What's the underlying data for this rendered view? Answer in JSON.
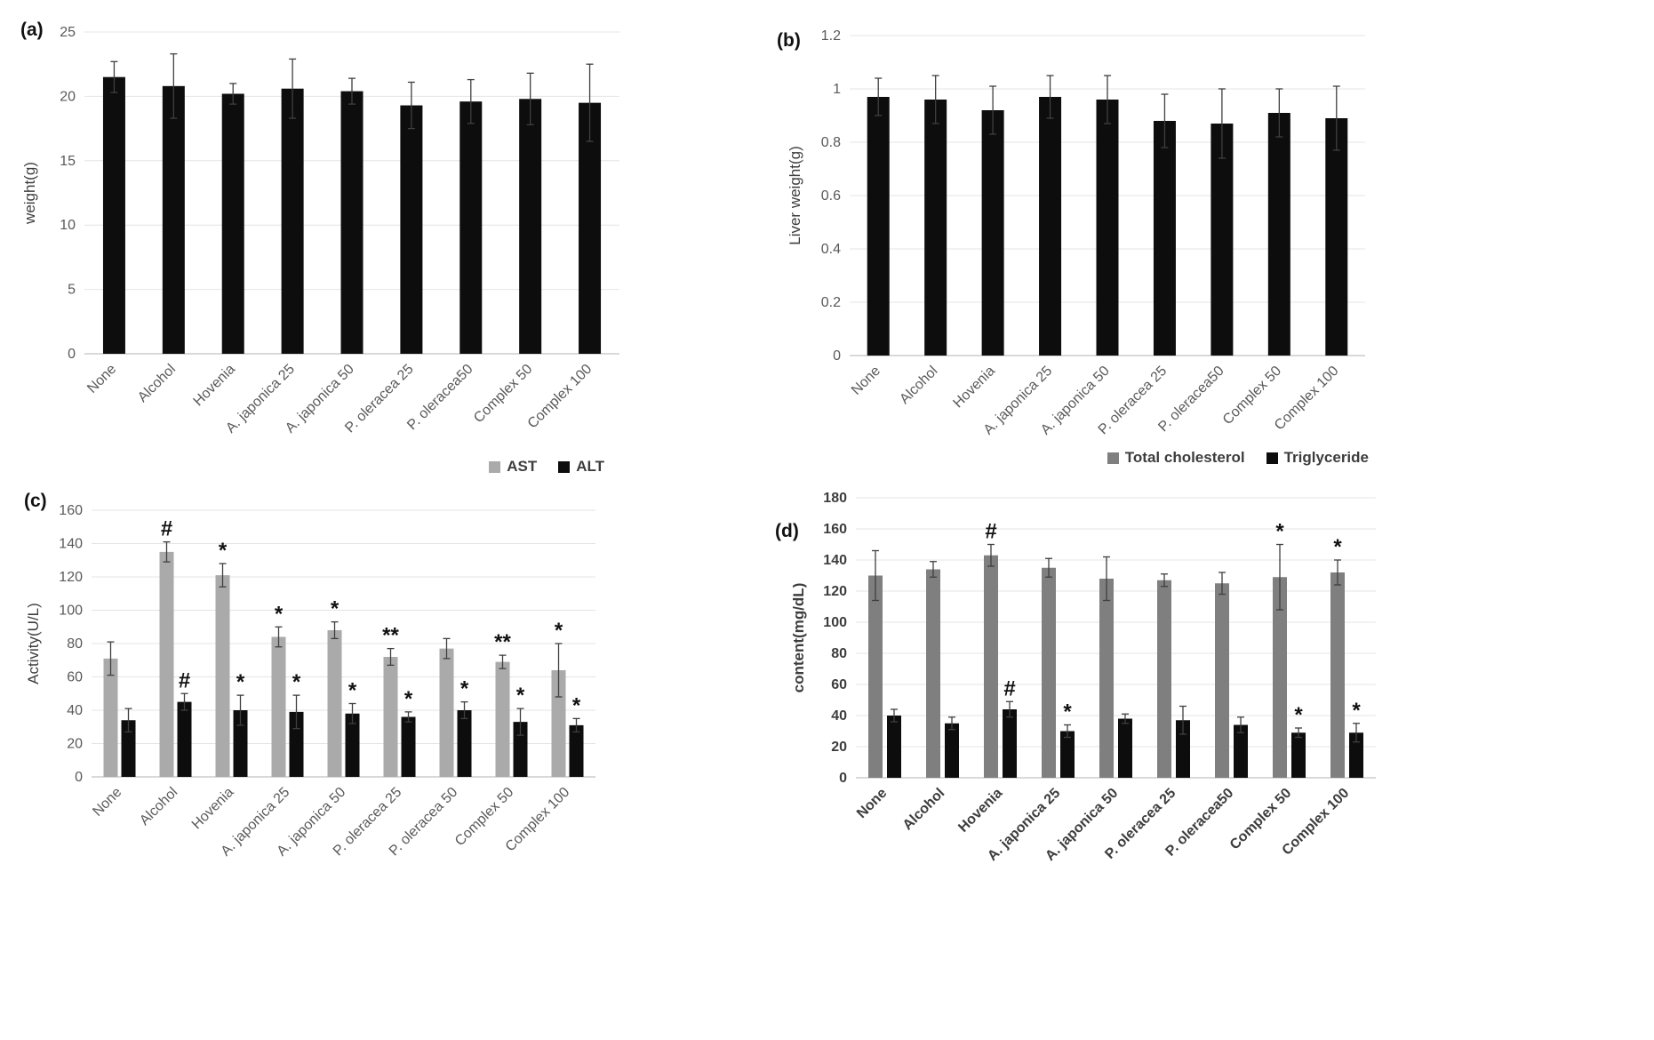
{
  "chart_data": [
    {
      "id": "a",
      "panel_label": "(a)",
      "type": "bar",
      "title": "",
      "xlabel": "",
      "ylabel": "weight(g)",
      "ylim": [
        0,
        25
      ],
      "ytick_values": [
        0,
        5,
        10,
        15,
        20,
        25
      ],
      "ytick_labels": [
        "0",
        "5",
        "10",
        "15",
        "20",
        "25"
      ],
      "grid": true,
      "legend": null,
      "categories": [
        "None",
        "Alcohol",
        "Hovenia",
        "A. japonica 25",
        "A. japonica 50",
        "P. oleracea 25",
        "P. oleracea50",
        "Complex 50",
        "Complex 100"
      ],
      "series": [
        {
          "name": "",
          "color": "#0d0d0d",
          "values": [
            21.5,
            20.8,
            20.2,
            20.6,
            20.4,
            19.3,
            19.6,
            19.8,
            19.5
          ],
          "errors": [
            1.2,
            2.5,
            0.8,
            2.3,
            1.0,
            1.8,
            1.7,
            2.0,
            3.0
          ],
          "annotations": [
            "",
            "",
            "",
            "",
            "",
            "",
            "",
            "",
            ""
          ]
        }
      ]
    },
    {
      "id": "b",
      "panel_label": "(b)",
      "type": "bar",
      "title": "",
      "xlabel": "",
      "ylabel": "Liver weight(g)",
      "ylim": [
        0,
        1.2
      ],
      "ytick_values": [
        0,
        0.2,
        0.4,
        0.6,
        0.8,
        1,
        1.2
      ],
      "ytick_labels": [
        "0",
        "0.2",
        "0.4",
        "0.6",
        "0.8",
        "1",
        "1.2"
      ],
      "grid": true,
      "legend": null,
      "categories": [
        "None",
        "Alcohol",
        "Hovenia",
        "A. japonica 25",
        "A. japonica 50",
        "P. oleracea 25",
        "P. oleracea50",
        "Complex 50",
        "Complex 100"
      ],
      "series": [
        {
          "name": "",
          "color": "#0d0d0d",
          "values": [
            0.97,
            0.96,
            0.92,
            0.97,
            0.96,
            0.88,
            0.87,
            0.91,
            0.89
          ],
          "errors": [
            0.07,
            0.09,
            0.09,
            0.08,
            0.09,
            0.1,
            0.13,
            0.09,
            0.12
          ],
          "annotations": [
            "",
            "",
            "",
            "",
            "",
            "",
            "",
            "",
            ""
          ]
        }
      ]
    },
    {
      "id": "c",
      "panel_label": "(c)",
      "type": "bar",
      "title": "",
      "xlabel": "",
      "ylabel": "Activity(U/L)",
      "ylim": [
        0,
        160
      ],
      "ytick_values": [
        0,
        20,
        40,
        60,
        80,
        100,
        120,
        140,
        160
      ],
      "ytick_labels": [
        "0",
        "20",
        "40",
        "60",
        "80",
        "100",
        "120",
        "140",
        "160"
      ],
      "grid": true,
      "legend": {
        "position": "top-right"
      },
      "categories": [
        "None",
        "Alcohol",
        "Hovenia",
        "A. japonica 25",
        "A. japonica 50",
        "P. oleracea 25",
        "P. oleracea 50",
        "Complex 50",
        "Complex 100"
      ],
      "series": [
        {
          "name": "AST",
          "color": "#aaaaaa",
          "values": [
            71,
            135,
            121,
            84,
            88,
            72,
            77,
            69,
            64
          ],
          "errors": [
            10,
            6,
            7,
            6,
            5,
            5,
            6,
            4,
            16
          ],
          "annotations": [
            "",
            "#",
            "*",
            "*",
            "*",
            "**",
            "",
            "**",
            "*"
          ]
        },
        {
          "name": "ALT",
          "color": "#0d0d0d",
          "values": [
            34,
            45,
            40,
            39,
            38,
            36,
            40,
            33,
            31
          ],
          "errors": [
            7,
            5,
            9,
            10,
            6,
            3,
            5,
            8,
            4
          ],
          "annotations": [
            "",
            "#",
            "*",
            "*",
            "*",
            "*",
            "*",
            "*",
            "*"
          ]
        }
      ]
    },
    {
      "id": "d",
      "panel_label": "(d)",
      "type": "bar",
      "title": "",
      "xlabel": "",
      "ylabel": "content(mg/dL)",
      "ylim": [
        0,
        180
      ],
      "ytick_values": [
        0,
        20,
        40,
        60,
        80,
        100,
        120,
        140,
        160,
        180
      ],
      "ytick_labels": [
        "0",
        "20",
        "40",
        "60",
        "80",
        "100",
        "120",
        "140",
        "160",
        "180"
      ],
      "grid": true,
      "legend": {
        "position": "top-right"
      },
      "categories": [
        "None",
        "Alcohol",
        "Hovenia",
        "A. japonica 25",
        "A. japonica 50",
        "P. oleracea 25",
        "P. oleracea50",
        "Complex 50",
        "Complex 100"
      ],
      "series": [
        {
          "name": "Total cholesterol",
          "color": "#7f7f7f",
          "values": [
            130,
            134,
            143,
            135,
            128,
            127,
            125,
            129,
            132
          ],
          "errors": [
            16,
            5,
            7,
            6,
            14,
            4,
            7,
            21,
            8
          ],
          "annotations": [
            "",
            "",
            "#",
            "",
            "",
            "",
            "",
            "*",
            "*"
          ]
        },
        {
          "name": "Triglyceride",
          "color": "#0d0d0d",
          "values": [
            40,
            35,
            44,
            30,
            38,
            37,
            34,
            29,
            29
          ],
          "errors": [
            4,
            4,
            5,
            4,
            3,
            9,
            5,
            3,
            6
          ],
          "annotations": [
            "",
            "",
            "#",
            "*",
            "",
            "",
            "",
            "*",
            "*"
          ]
        }
      ]
    }
  ]
}
